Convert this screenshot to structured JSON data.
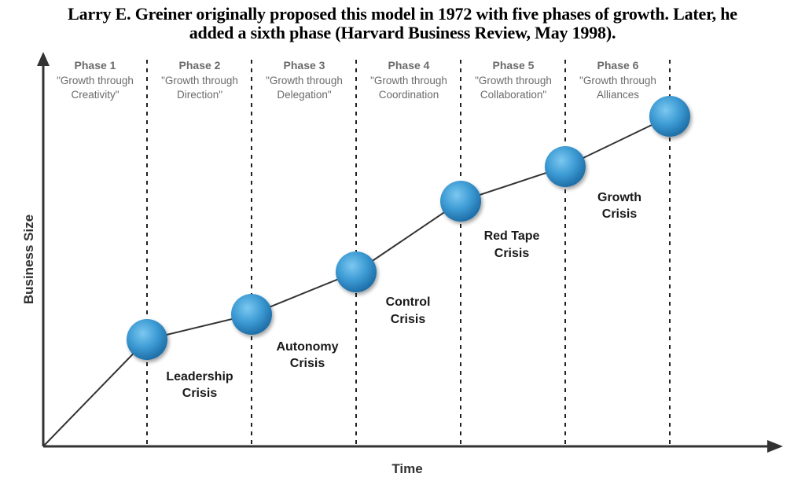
{
  "title": {
    "line1": "Larry E. Greiner originally proposed this model in 1972 with five phases of growth. Later, he",
    "line2": "added a sixth phase (Harvard Business Review, May 1998)."
  },
  "axes": {
    "x_label": "Time",
    "y_label": "Business Size"
  },
  "phases": [
    {
      "name": "Phase 1",
      "line1": "\"Growth through",
      "line2": "Creativity\""
    },
    {
      "name": "Phase 2",
      "line1": "\"Growth through",
      "line2": "Direction\""
    },
    {
      "name": "Phase 3",
      "line1": "\"Growth through",
      "line2": "Delegation\""
    },
    {
      "name": "Phase 4",
      "line1": "\"Growth through",
      "line2": "Coordination"
    },
    {
      "name": "Phase 5",
      "line1": "\"Growth through",
      "line2": "Collaboration\""
    },
    {
      "name": "Phase 6",
      "line1": "\"Growth through",
      "line2": "Alliances"
    }
  ],
  "crises": [
    {
      "line1": "Leadership",
      "line2": "Crisis"
    },
    {
      "line1": "Autonomy",
      "line2": "Crisis"
    },
    {
      "line1": "Control",
      "line2": "Crisis"
    },
    {
      "line1": "Red Tape",
      "line2": "Crisis"
    },
    {
      "line1": "Growth",
      "line2": "Crisis"
    }
  ],
  "colors": {
    "node": "#3d9bd4",
    "node_dark": "#1f6fa8",
    "line": "#333333",
    "divider": "#222222",
    "phase_text": "#6b6b6b"
  }
}
